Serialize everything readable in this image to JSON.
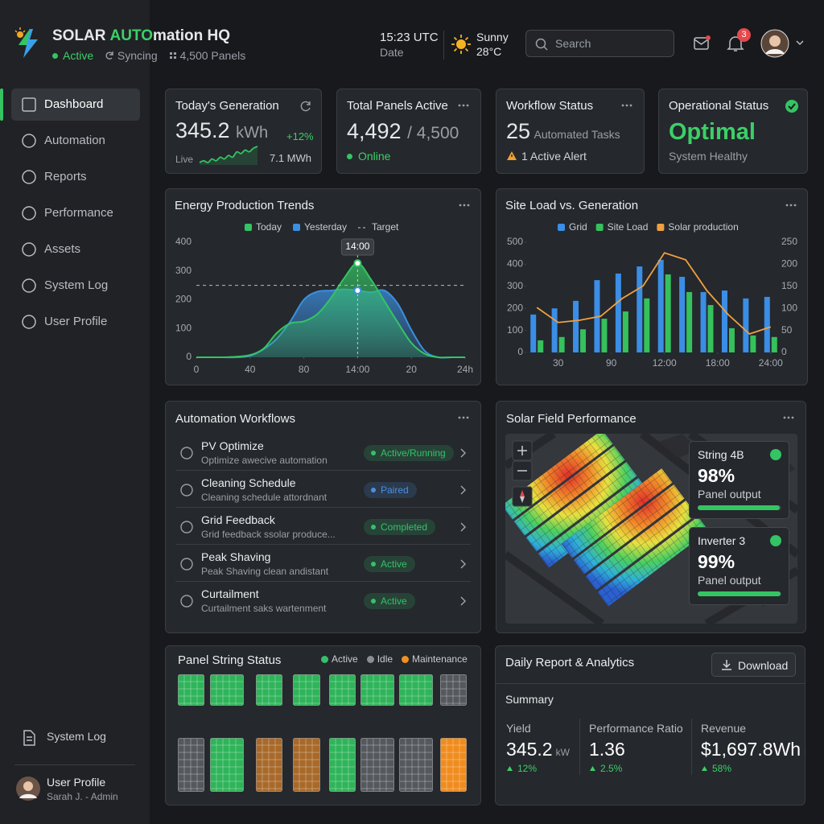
{
  "header": {
    "title": [
      "SOLAR",
      "AUTO",
      "mation HQ"
    ],
    "status": "Active",
    "sync": "Syncing",
    "panels": "4,500 Panels",
    "time": "15:23 UTC",
    "date": "Date",
    "weather": "Sunny",
    "temperature": "28°C",
    "search": "Search",
    "notifications": "3"
  },
  "sidebar": {
    "nav": [
      "Dashboard",
      "Automation",
      "Reports",
      "Performance",
      "Assets",
      "System Log",
      "User Profile"
    ],
    "footer_link": "System Log",
    "user": "User Profile",
    "user_role": "Sarah J. - Admin"
  },
  "kpis": [
    {
      "title": "Today's Generation",
      "value": "345.2",
      "unit": "kWh",
      "change": "+12%",
      "live": "Live",
      "total": "7.1 MWh",
      "sparkline": [
        3,
        4,
        3,
        5,
        4,
        6,
        5,
        7,
        6,
        9,
        8,
        10,
        9,
        11,
        12
      ]
    },
    {
      "title": "Total Panels Active",
      "value": "4,492",
      "unit": "/ 4,500",
      "status": "Online"
    },
    {
      "title": "Workflow Status",
      "value": "25",
      "unit": "Automated Tasks",
      "alert": "1 Active Alert"
    },
    {
      "title": "Operational Status",
      "value": "Optimal",
      "status": "System Healthy"
    }
  ],
  "chart_data": [
    {
      "type": "area",
      "title": "Energy Production Trends",
      "x": [
        0,
        5,
        10,
        15,
        20,
        25,
        30,
        35,
        40,
        45,
        50,
        55,
        60,
        65,
        70,
        75,
        80,
        85,
        90,
        95,
        100
      ],
      "series": [
        {
          "name": "Today",
          "color": "#34c463",
          "values": [
            0,
            0,
            0,
            2,
            8,
            30,
            85,
            118,
            125,
            150,
            205,
            275,
            327,
            270,
            195,
            120,
            50,
            12,
            0,
            0,
            0
          ]
        },
        {
          "name": "Yesterday",
          "color": "#3b8fe0",
          "values": [
            0,
            0,
            0,
            0,
            5,
            28,
            65,
            125,
            200,
            228,
            232,
            236,
            232,
            226,
            232,
            185,
            95,
            22,
            0,
            0,
            0
          ]
        }
      ],
      "target": {
        "name": "Target",
        "value": 250
      },
      "tooltip": {
        "label": "14:00",
        "x": 60
      },
      "xlim": [
        0,
        100
      ],
      "xticks": [
        0,
        {
          "value": 20,
          "label": "40"
        },
        {
          "value": 40,
          "label": "80"
        },
        {
          "value": 60,
          "label": "14:00"
        },
        {
          "value": 80,
          "label": "20"
        },
        {
          "value": 100,
          "label": "24h"
        }
      ],
      "ylim": [
        0,
        400
      ],
      "yticks": [
        0,
        100,
        200,
        300,
        400
      ],
      "grid": false
    },
    {
      "type": "bar",
      "title": "Site Load vs. Generation",
      "x": [
        1,
        2,
        3,
        4,
        5,
        6,
        7,
        8,
        9,
        10,
        11,
        12
      ],
      "series": [
        {
          "name": "Grid",
          "color": "#3a8ee6",
          "type": "bar",
          "values": [
            172,
            200,
            234,
            328,
            358,
            390,
            420,
            343,
            274,
            281,
            245,
            252
          ]
        },
        {
          "name": "Site Load",
          "color": "#35c15c",
          "type": "bar",
          "values": [
            55,
            70,
            105,
            153,
            186,
            245,
            354,
            274,
            215,
            110,
            77,
            70
          ]
        },
        {
          "name": "Solar production",
          "color": "#f0a040",
          "type": "line",
          "axis": "y2",
          "values": [
            102,
            68,
            73,
            82,
            122,
            151,
            226,
            210,
            140,
            86,
            42,
            58
          ]
        }
      ],
      "xlim": [
        0.5,
        12.5
      ],
      "xticks": [
        {
          "value": 2,
          "label": "30"
        },
        {
          "value": 4.5,
          "label": "90"
        },
        {
          "value": 7,
          "label": "12:00"
        },
        {
          "value": 9.5,
          "label": "18:00"
        },
        {
          "value": 12,
          "label": "24:00"
        }
      ],
      "ylim": [
        0,
        500
      ],
      "yticks": [
        0,
        100,
        200,
        300,
        400,
        500
      ],
      "y2lim": [
        0,
        250
      ],
      "y2ticks": [
        0,
        50,
        100,
        150,
        200,
        250
      ],
      "grid": false
    }
  ],
  "workflows": {
    "title": "Automation Workflows",
    "items": [
      {
        "name": "PV Optimize",
        "description": "Optimize awecive automation",
        "status": "Active/Running",
        "color": "#34c16a"
      },
      {
        "name": "Cleaning Schedule",
        "description": "Cleaning schedule attordnant",
        "status": "Paired",
        "color": "#4a90e2"
      },
      {
        "name": "Grid Feedback",
        "description": "Grid feedback ssolar produce...",
        "status": "Completed",
        "color": "#34c16a"
      },
      {
        "name": "Peak Shaving",
        "description": "Peak Shaving clean andistant",
        "status": "Active",
        "color": "#34c16a"
      },
      {
        "name": "Curtailment",
        "description": "Curtailment saks wartenment",
        "status": "Active",
        "color": "#34c16a"
      }
    ]
  },
  "solar_field": {
    "title": "Solar Field Performance",
    "overlays": [
      {
        "name": "String 4B",
        "value": 98,
        "label": "98%",
        "caption": "Panel output"
      },
      {
        "name": "Inverter 3",
        "value": 99,
        "label": "99%",
        "caption": "Panel output"
      }
    ]
  },
  "panel_strings": {
    "title": "Panel String Status",
    "legend": [
      {
        "name": "Active",
        "color": "#34c16a"
      },
      {
        "name": "Idle",
        "color": "#8b8f95"
      },
      {
        "name": "Maintenance",
        "color": "#f0901e"
      }
    ],
    "rows": [
      [
        "#2fb45a",
        "#2fb45a",
        "#2fb45a",
        "#2fb45a",
        "#2fb45a",
        "#2fb45a",
        "#2fb45a",
        "#55585d"
      ],
      [
        "#55585d",
        "#2fb45a",
        "#a8692a",
        "#a8692a",
        "#2fb45a",
        "#55585d",
        "#55585d",
        "#f08c1e"
      ]
    ]
  },
  "report": {
    "title": "Daily Report & Analytics",
    "download": "Download",
    "summary": "Summary",
    "metrics": [
      {
        "label": "Yield",
        "value": "345.2",
        "unit": "kW",
        "change": "12%"
      },
      {
        "label": "Performance Ratio",
        "value": "1.36",
        "change": "2.5%"
      },
      {
        "label": "Revenue",
        "value": "$1,697.8Wh",
        "change": "58%"
      }
    ]
  }
}
